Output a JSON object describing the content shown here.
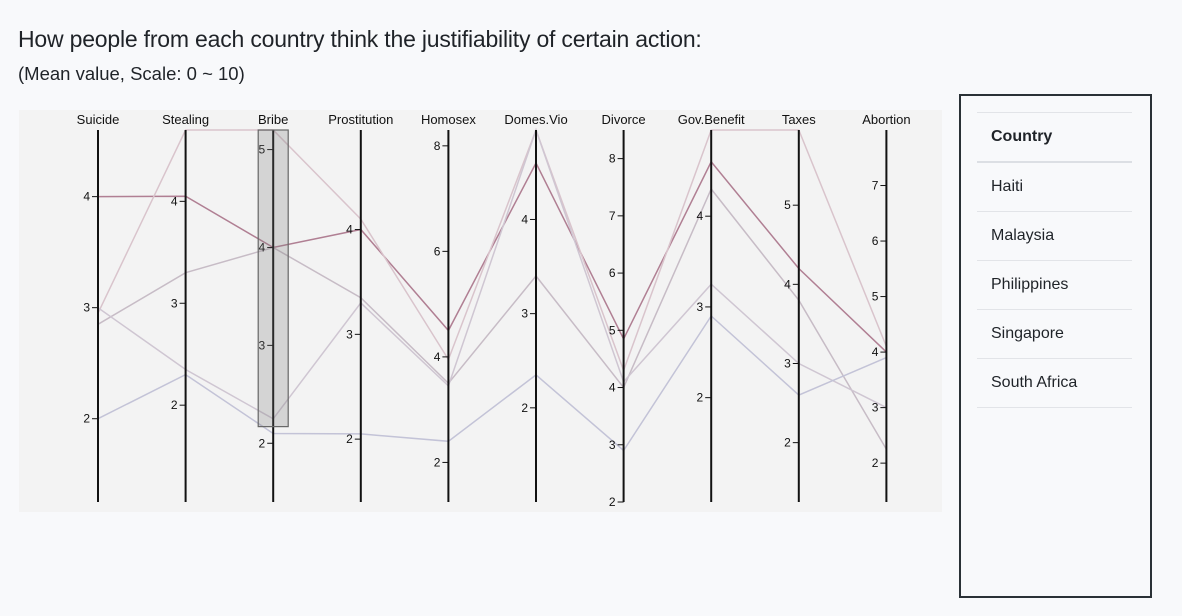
{
  "page": {
    "title": "How people from each country think the justifiability of certain action:",
    "subtitle": "(Mean value, Scale: 0 ~ 10)"
  },
  "legend": {
    "header": "Country",
    "rows": [
      "Haiti",
      "Malaysia",
      "Philippines",
      "Singapore",
      "South Africa"
    ]
  },
  "chart_data": {
    "type": "parallel-coordinates",
    "title": "How people from each country think the justifiability of certain action:",
    "subtitle": "(Mean value, Scale: 0 ~ 10)",
    "axes": [
      {
        "name": "Suicide",
        "range": [
          1.25,
          4.6
        ],
        "ticks": [
          2,
          3,
          4
        ]
      },
      {
        "name": "Stealing",
        "range": [
          1.05,
          4.7
        ],
        "ticks": [
          2,
          3,
          4
        ]
      },
      {
        "name": "Bribe",
        "range": [
          1.4,
          5.2
        ],
        "ticks": [
          2,
          3,
          4,
          5
        ]
      },
      {
        "name": "Prostitution",
        "range": [
          1.4,
          4.95
        ],
        "ticks": [
          2,
          3,
          4
        ]
      },
      {
        "name": "Homosex",
        "range": [
          1.25,
          8.3
        ],
        "ticks": [
          2,
          4,
          6,
          8
        ]
      },
      {
        "name": "Domes.Vio",
        "range": [
          1.0,
          4.95
        ],
        "ticks": [
          2,
          3,
          4
        ]
      },
      {
        "name": "Divorce",
        "range": [
          2.0,
          8.5
        ],
        "ticks": [
          2,
          3,
          4,
          5,
          6,
          7,
          8
        ]
      },
      {
        "name": "Gov.Benefit",
        "range": [
          0.85,
          4.95
        ],
        "ticks": [
          2,
          3,
          4
        ]
      },
      {
        "name": "Taxes",
        "range": [
          1.25,
          5.95
        ],
        "ticks": [
          2,
          3,
          4,
          5
        ]
      },
      {
        "name": "Abortion",
        "range": [
          1.3,
          8.0
        ],
        "ticks": [
          2,
          3,
          4,
          5,
          6,
          7
        ]
      }
    ],
    "series": [
      {
        "values": [
          4.0,
          4.05,
          4.0,
          4.0,
          4.5,
          4.6,
          4.85,
          4.6,
          4.2,
          4.0
        ],
        "color": "#b07f93"
      },
      {
        "values": [
          2.95,
          4.7,
          5.2,
          4.1,
          3.95,
          4.95,
          4.3,
          4.95,
          5.95,
          4.1
        ],
        "color": "#d9c4cc"
      },
      {
        "values": [
          2.85,
          3.3,
          4.0,
          3.35,
          3.5,
          3.4,
          4.0,
          4.3,
          3.8,
          2.25
        ],
        "color": "#c7bcc6"
      },
      {
        "values": [
          3.0,
          2.35,
          2.25,
          3.3,
          3.45,
          4.95,
          4.1,
          3.25,
          3.0,
          3.0
        ],
        "color": "#cfc6d2"
      },
      {
        "values": [
          2.0,
          2.3,
          2.1,
          2.05,
          2.4,
          2.35,
          2.9,
          2.9,
          2.6,
          3.9
        ],
        "color": "#c3c3d7"
      }
    ],
    "brush": {
      "axis": "Bribe",
      "range": [
        2.17,
        5.2
      ]
    },
    "legend_placement": "right",
    "grid": false
  }
}
